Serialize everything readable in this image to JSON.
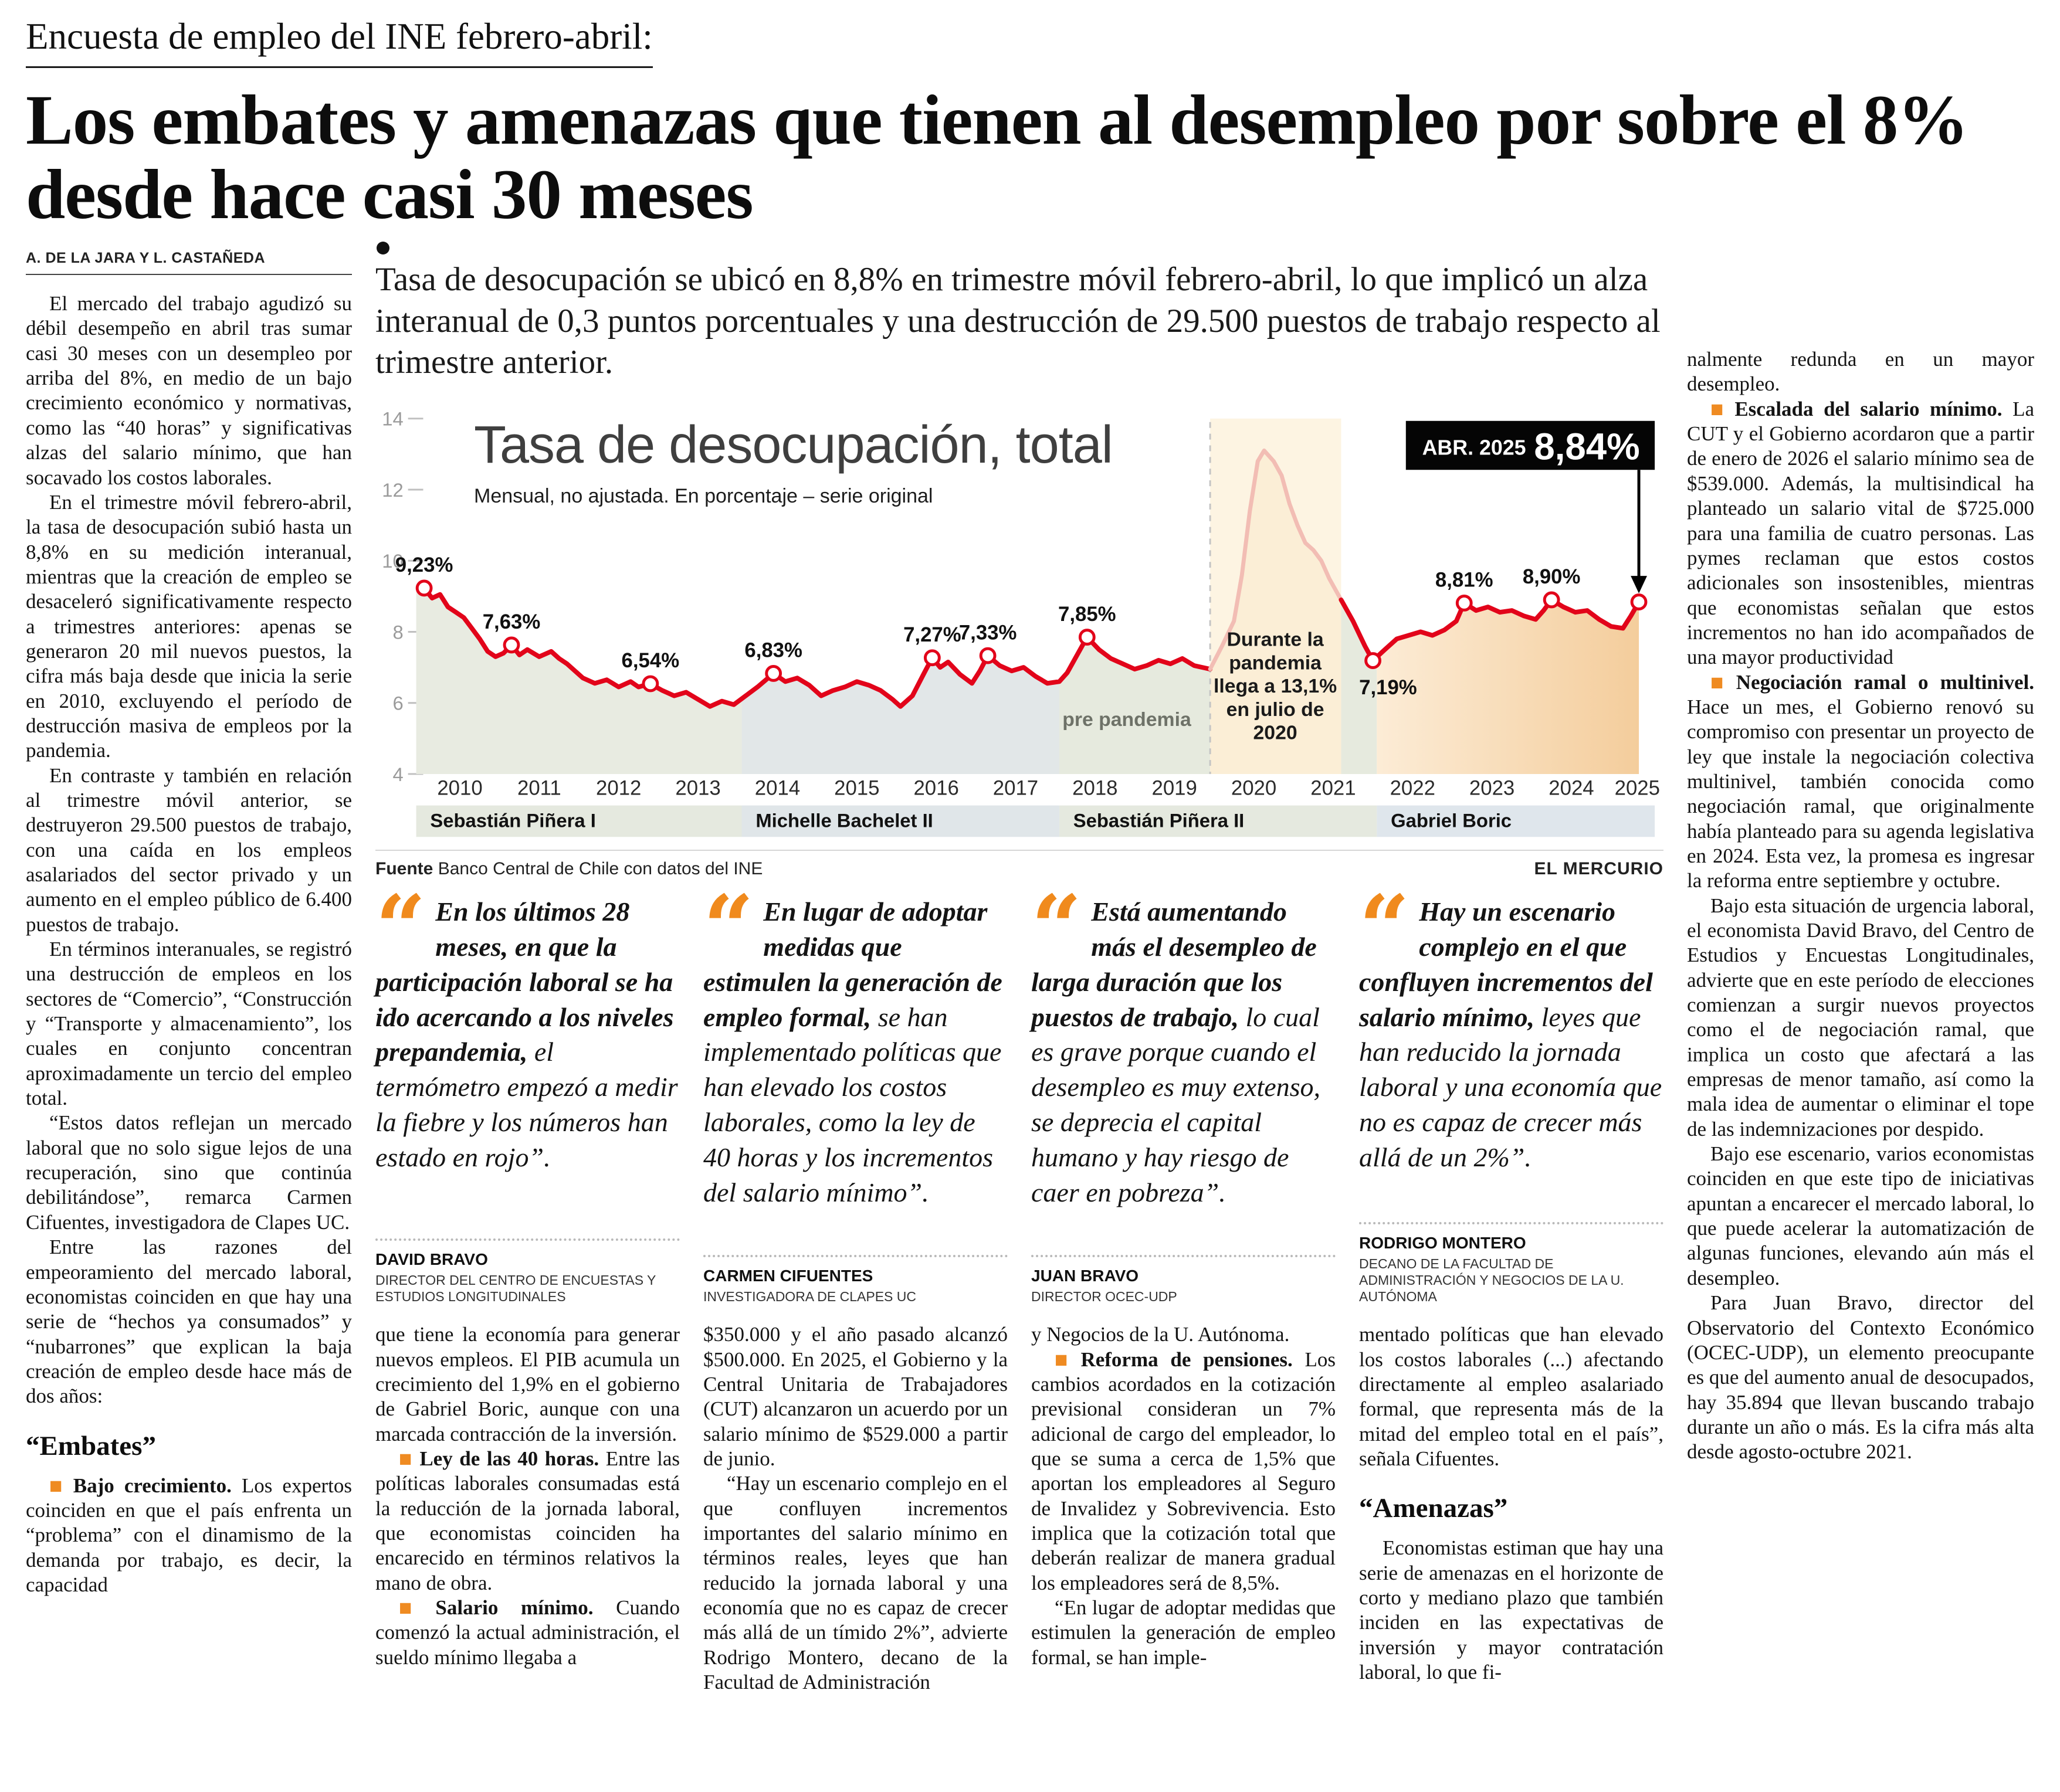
{
  "colors": {
    "accent_orange": "#ef8b22",
    "line_red": "#e2041a"
  },
  "header": {
    "kicker": "Encuesta de empleo del INE febrero-abril:",
    "headline": "Los embates y amenazas que tienen al desempleo por sobre el 8% desde hace casi 30 meses",
    "byline": "A. DE LA JARA Y L. CASTAÑEDA",
    "lead": "Tasa de desocupación se ubicó en 8,8% en trimestre móvil febrero-abril, lo que implicó un alza interanual de 0,3 puntos porcentuales y una destrucción de 29.500 puestos de trabajo respecto al trimestre anterior."
  },
  "left_column": {
    "blocks": [
      {
        "type": "p",
        "text": "El mercado del trabajo agudizó su débil desempeño en abril tras sumar casi 30 meses con un desempleo por arriba del 8%, en medio de un bajo crecimiento económico y normativas, como las “40 horas” y significativas alzas del salario mínimo, que han socavado los costos laborales."
      },
      {
        "type": "p",
        "text": "En el trimestre móvil febrero-abril, la tasa de desocupación subió hasta un 8,8% en su medición interanual, mientras que la creación de empleo se desaceleró significativamente respecto a trimestres anteriores: apenas se generaron 20 mil nuevos puestos, la cifra más baja desde que inicia la serie en 2010, excluyendo el período de destrucción masiva de empleos por la pandemia."
      },
      {
        "type": "p",
        "text": "En contraste y también en relación al trimestre móvil anterior, se destruyeron 29.500 puestos de trabajo, con una caída en los empleos asalariados del sector privado y un aumento en el empleo público de 6.400 puestos de trabajo."
      },
      {
        "type": "p",
        "text": "En términos interanuales, se registró una destrucción de empleos en los sectores de “Comercio”, “Construcción y “Transporte y almacenamiento”, los cuales en conjunto concentran aproximadamente un tercio del empleo total."
      },
      {
        "type": "p",
        "text": "“Estos datos reflejan un mercado laboral que no solo sigue lejos de una recuperación, sino que continúa debilitándose”, remarca Carmen Cifuentes, investigadora de Clapes UC."
      },
      {
        "type": "p",
        "text": "Entre las razones del empeoramiento del mercado laboral, economistas coinciden en que hay una serie de “hechos ya consumados” y “nubarrones” que explican la baja creación de empleo desde hace más de dos años:"
      },
      {
        "type": "subhead",
        "text": "“Embates”"
      },
      {
        "type": "bullet",
        "lead": "Bajo crecimiento.",
        "text": "Los expertos coinciden en que el país enfrenta un “problema” con el dinamismo de la demanda por trabajo, es decir, la capacidad"
      }
    ]
  },
  "quotes": [
    {
      "mark": "“",
      "bold": "En los últimos 28 meses, en que la participación laboral se ha ido acercando a los niveles prepandemia,",
      "rest": "el termómetro empezó a medir la fiebre y los números han estado en rojo”.",
      "name": "DAVID BRAVO",
      "title": "DIRECTOR DEL CENTRO DE ENCUESTAS Y ESTUDIOS LONGITUDINALES"
    },
    {
      "mark": "“",
      "bold": "En lugar de adoptar medidas que estimulen la generación de empleo formal,",
      "rest": "se han implementado políticas que han elevado los costos laborales, como la ley de 40 horas y los incrementos del salario mínimo”.",
      "name": "CARMEN CIFUENTES",
      "title": "INVESTIGADORA DE CLAPES UC"
    },
    {
      "mark": "“",
      "bold": "Está aumentando más el desempleo de larga duración que los puestos de trabajo,",
      "rest": "lo cual es grave porque cuando el desempleo es muy extenso, se deprecia el capital humano y hay riesgo de caer en pobreza”.",
      "name": "JUAN BRAVO",
      "title": "DIRECTOR OCEC-UDP"
    },
    {
      "mark": "“",
      "bold": "Hay un escenario complejo en el que confluyen incrementos del salario mínimo,",
      "rest": "leyes que han reducido la jornada laboral y una economía que no es capaz de crecer más allá de un 2%”.",
      "name": "RODRIGO MONTERO",
      "title": "DECANO DE LA FACULTAD DE ADMINISTRACIÓN Y NEGOCIOS DE LA U. AUTÓNOMA"
    }
  ],
  "mid_columns": [
    {
      "blocks": [
        {
          "type": "p",
          "indent": false,
          "text": "que tiene la economía para generar nuevos empleos. El PIB acumula un crecimiento del 1,9% en el gobierno de Gabriel Boric, aunque con una marcada contracción de la inversión."
        },
        {
          "type": "bullet",
          "lead": "Ley de las 40 horas.",
          "text": "Entre las políticas laborales consumadas está la reducción de la jornada laboral, que economistas coinciden ha encarecido en términos relativos la mano de obra."
        },
        {
          "type": "bullet",
          "lead": "Salario mínimo.",
          "text": "Cuando comenzó la actual administración, el sueldo mínimo llegaba a"
        }
      ]
    },
    {
      "blocks": [
        {
          "type": "p",
          "indent": false,
          "text": "$350.000 y el año pasado alcanzó $500.000. En 2025, el Gobierno y la Central Unitaria de Trabajadores (CUT) alcanzaron un acuerdo por un salario mínimo de $529.000 a partir de junio."
        },
        {
          "type": "p",
          "text": "“Hay un escenario complejo en el que confluyen incrementos importantes del salario mínimo en términos reales, leyes que han reducido la jornada laboral y una economía que no es capaz de crecer más allá de un tímido 2%”, advierte Rodrigo Montero, decano de la Facultad de Administración"
        }
      ]
    },
    {
      "blocks": [
        {
          "type": "p",
          "indent": false,
          "text": "y Negocios de la U. Autónoma."
        },
        {
          "type": "bullet",
          "lead": "Reforma de pensiones.",
          "text": "Los cambios acordados en la cotización previsional consideran un 7% adicional de cargo del empleador, lo que se suma a cerca de 1,5% que aportan los empleadores al Seguro de Invalidez y Sobrevivencia. Esto implica que la cotización total que deberán realizar de manera gradual los empleadores será de 8,5%."
        },
        {
          "type": "p",
          "text": "“En lugar de adoptar medidas que estimulen la generación de empleo formal, se han imple-"
        }
      ]
    },
    {
      "blocks": [
        {
          "type": "p",
          "indent": false,
          "text": "mentado políticas que han elevado los costos laborales (...) afectando directamente al empleo asalariado formal, que representa más de la mitad del empleo total en el país”, señala Cifuentes."
        },
        {
          "type": "subhead",
          "text": "“Amenazas”"
        },
        {
          "type": "p",
          "text": "Economistas estiman que hay una serie de amenazas en el horizonte de corto y mediano plazo que también inciden en las expectativas de inversión y mayor contratación laboral, lo que fi-"
        }
      ]
    }
  ],
  "right_column": {
    "blocks": [
      {
        "type": "p",
        "indent": false,
        "text": "nalmente redunda en un mayor desempleo."
      },
      {
        "type": "bullet",
        "lead": "Escalada del salario mínimo.",
        "text": "La CUT y el Gobierno acordaron que a partir de enero de 2026 el salario mínimo sea de $539.000. Además, la multisindical ha planteado un salario vital de $725.000 para una familia de cuatro personas. Las pymes reclaman que estos costos adicionales son insostenibles, mientras que economistas señalan que estos incrementos no han ido acompañados de una mayor productividad"
      },
      {
        "type": "bullet",
        "lead": "Negociación ramal o multinivel.",
        "text": "Hace un mes, el Gobierno renovó su compromiso con presentar un proyecto de ley que instale la negociación colectiva multinivel, también conocida como negociación ramal, que originalmente había planteado para su agenda legislativa en 2024. Esta vez, la promesa es ingresar la reforma entre septiembre y octubre."
      },
      {
        "type": "p",
        "text": "Bajo esta situación de urgencia laboral, el economista David Bravo, del Centro de Estudios y Encuestas Longitudinales, advierte que en este período de elecciones comienzan a surgir nuevos proyectos como el de negociación ramal, que implica un costo que afectará a las empresas de menor tamaño, así como la mala idea de aumentar o eliminar el tope de las indemnizaciones por despido."
      },
      {
        "type": "p",
        "text": "Bajo ese escenario, varios economistas coinciden en que este tipo de iniciativas apuntan a encarecer el mercado laboral, lo que puede acelerar la automatización de algunas funciones, elevando aún más el desempleo."
      },
      {
        "type": "p",
        "text": "Para Juan Bravo, director del Observatorio del Contexto Económico (OCEC-UDP), un elemento preocupante es que del aumento anual de desocupados, hay 35.894 que llevan buscando trabajo durante un año o más. Es la cifra más alta desde agosto-octubre 2021."
      }
    ]
  },
  "chart_data": {
    "type": "line",
    "title": "Tasa de desocupación, total",
    "subtitle": "Mensual, no ajustada. En porcentaje – serie original",
    "source_label": "Fuente",
    "source": "Banco Central de Chile con datos del INE",
    "credit": "EL MERCURIO",
    "ylim": [
      4,
      14
    ],
    "yticks": [
      14,
      12,
      10,
      8,
      6,
      4
    ],
    "xlim": [
      2009.9,
      2025.5
    ],
    "year_ticks": [
      2010,
      2011,
      2012,
      2013,
      2014,
      2015,
      2016,
      2017,
      2018,
      2019,
      2020,
      2021,
      2022,
      2023,
      2024,
      2025
    ],
    "line_color": "#e2041a",
    "pandemic_line_color": "#f2bdb4",
    "pandemic_band_color": "#fdf4e2",
    "pandemic_fill_color": "#fbeed6",
    "boric_gradient": [
      "#fcecd6",
      "#f4cd9c"
    ],
    "pandemic_range": [
      2019.9,
      2021.55
    ],
    "pre_pandemic_label": "pre pandemia",
    "pre_pandemic_label_at": [
      2018.85,
      5.35
    ],
    "pandemic_note_lines": [
      "Durante la",
      "pandemia",
      "llega a 13,1%",
      "en julio de",
      "2020"
    ],
    "pandemic_note_at": [
      2020.72,
      7.6
    ],
    "periods": [
      {
        "name": "Sebastián Piñera I",
        "start": 2009.9,
        "end": 2014,
        "fill": "#e8ebe1",
        "band": "#e5e9df"
      },
      {
        "name": "Michelle Bachelet II",
        "start": 2014,
        "end": 2018,
        "fill": "#e2e7e8",
        "band": "#e0e6e9"
      },
      {
        "name": "Sebastián Piñera II",
        "start": 2018,
        "end": 2022,
        "fill": "#e6eade",
        "band": "#e5e9df"
      },
      {
        "name": "Gabriel Boric",
        "start": 2022,
        "end": 2025.5,
        "gradient": true,
        "fill": "#f9e3c8",
        "band": "#dfe6ec"
      }
    ],
    "labeled_points": [
      {
        "x": 2010.0,
        "y": 9.23,
        "label": "9,23%",
        "pos": "above"
      },
      {
        "x": 2011.1,
        "y": 7.63,
        "label": "7,63%",
        "pos": "above"
      },
      {
        "x": 2012.85,
        "y": 6.54,
        "label": "6,54%",
        "pos": "above"
      },
      {
        "x": 2014.4,
        "y": 6.83,
        "label": "6,83%",
        "pos": "above"
      },
      {
        "x": 2016.4,
        "y": 7.27,
        "label": "7,27%",
        "pos": "above"
      },
      {
        "x": 2017.1,
        "y": 7.33,
        "label": "7,33%",
        "pos": "above"
      },
      {
        "x": 2018.35,
        "y": 7.85,
        "label": "7,85%",
        "pos": "above"
      },
      {
        "x": 2021.95,
        "y": 7.19,
        "label": "7,19%",
        "pos": "below"
      },
      {
        "x": 2023.1,
        "y": 8.81,
        "label": "8,81%",
        "pos": "above"
      },
      {
        "x": 2024.2,
        "y": 8.9,
        "label": "8,90%",
        "pos": "above"
      }
    ],
    "latest": {
      "period": "ABR. 2025",
      "value": "8,84%",
      "x": 2025.3,
      "y": 8.84
    },
    "series": [
      [
        2010.0,
        9.23
      ],
      [
        2010.1,
        8.95
      ],
      [
        2010.2,
        9.05
      ],
      [
        2010.3,
        8.7
      ],
      [
        2010.4,
        8.55
      ],
      [
        2010.5,
        8.4
      ],
      [
        2010.6,
        8.1
      ],
      [
        2010.7,
        7.8
      ],
      [
        2010.8,
        7.45
      ],
      [
        2010.9,
        7.3
      ],
      [
        2011.0,
        7.4
      ],
      [
        2011.1,
        7.63
      ],
      [
        2011.2,
        7.35
      ],
      [
        2011.3,
        7.5
      ],
      [
        2011.45,
        7.3
      ],
      [
        2011.6,
        7.45
      ],
      [
        2011.7,
        7.25
      ],
      [
        2011.8,
        7.1
      ],
      [
        2011.9,
        6.9
      ],
      [
        2012.0,
        6.7
      ],
      [
        2012.15,
        6.55
      ],
      [
        2012.3,
        6.65
      ],
      [
        2012.45,
        6.45
      ],
      [
        2012.6,
        6.6
      ],
      [
        2012.7,
        6.45
      ],
      [
        2012.85,
        6.54
      ],
      [
        2013.0,
        6.35
      ],
      [
        2013.15,
        6.2
      ],
      [
        2013.3,
        6.3
      ],
      [
        2013.45,
        6.1
      ],
      [
        2013.6,
        5.9
      ],
      [
        2013.75,
        6.05
      ],
      [
        2013.9,
        5.95
      ],
      [
        2014.05,
        6.2
      ],
      [
        2014.2,
        6.45
      ],
      [
        2014.4,
        6.83
      ],
      [
        2014.55,
        6.6
      ],
      [
        2014.7,
        6.7
      ],
      [
        2014.85,
        6.5
      ],
      [
        2015.0,
        6.2
      ],
      [
        2015.15,
        6.35
      ],
      [
        2015.3,
        6.45
      ],
      [
        2015.45,
        6.6
      ],
      [
        2015.6,
        6.5
      ],
      [
        2015.75,
        6.35
      ],
      [
        2015.9,
        6.1
      ],
      [
        2016.0,
        5.9
      ],
      [
        2016.15,
        6.2
      ],
      [
        2016.3,
        6.85
      ],
      [
        2016.4,
        7.27
      ],
      [
        2016.5,
        7.0
      ],
      [
        2016.6,
        7.15
      ],
      [
        2016.75,
        6.8
      ],
      [
        2016.9,
        6.55
      ],
      [
        2017.0,
        6.9
      ],
      [
        2017.1,
        7.33
      ],
      [
        2017.25,
        7.05
      ],
      [
        2017.4,
        6.9
      ],
      [
        2017.55,
        7.0
      ],
      [
        2017.7,
        6.75
      ],
      [
        2017.85,
        6.55
      ],
      [
        2018.0,
        6.6
      ],
      [
        2018.1,
        6.85
      ],
      [
        2018.2,
        7.25
      ],
      [
        2018.35,
        7.85
      ],
      [
        2018.5,
        7.5
      ],
      [
        2018.65,
        7.25
      ],
      [
        2018.8,
        7.1
      ],
      [
        2018.95,
        6.95
      ],
      [
        2019.1,
        7.05
      ],
      [
        2019.25,
        7.2
      ],
      [
        2019.4,
        7.1
      ],
      [
        2019.55,
        7.25
      ],
      [
        2019.7,
        7.05
      ],
      [
        2019.9,
        6.95
      ],
      [
        2020.05,
        7.6
      ],
      [
        2020.2,
        8.3
      ],
      [
        2020.3,
        9.6
      ],
      [
        2020.4,
        11.4
      ],
      [
        2020.5,
        12.8
      ],
      [
        2020.58,
        13.1
      ],
      [
        2020.7,
        12.8
      ],
      [
        2020.8,
        12.4
      ],
      [
        2020.9,
        11.6
      ],
      [
        2021.0,
        11.0
      ],
      [
        2021.1,
        10.5
      ],
      [
        2021.2,
        10.3
      ],
      [
        2021.3,
        10.0
      ],
      [
        2021.4,
        9.5
      ],
      [
        2021.55,
        8.9
      ],
      [
        2021.7,
        8.3
      ],
      [
        2021.85,
        7.6
      ],
      [
        2021.95,
        7.19
      ],
      [
        2022.1,
        7.5
      ],
      [
        2022.25,
        7.8
      ],
      [
        2022.4,
        7.9
      ],
      [
        2022.55,
        8.0
      ],
      [
        2022.7,
        7.9
      ],
      [
        2022.85,
        8.05
      ],
      [
        2023.0,
        8.3
      ],
      [
        2023.1,
        8.81
      ],
      [
        2023.25,
        8.6
      ],
      [
        2023.4,
        8.7
      ],
      [
        2023.55,
        8.55
      ],
      [
        2023.7,
        8.6
      ],
      [
        2023.85,
        8.45
      ],
      [
        2024.0,
        8.35
      ],
      [
        2024.1,
        8.6
      ],
      [
        2024.2,
        8.9
      ],
      [
        2024.35,
        8.7
      ],
      [
        2024.5,
        8.55
      ],
      [
        2024.65,
        8.6
      ],
      [
        2024.8,
        8.35
      ],
      [
        2024.95,
        8.15
      ],
      [
        2025.1,
        8.1
      ],
      [
        2025.2,
        8.45
      ],
      [
        2025.3,
        8.84
      ]
    ]
  }
}
